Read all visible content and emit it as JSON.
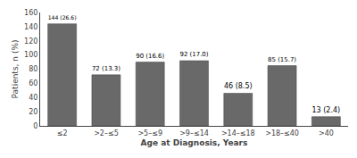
{
  "chart_data": {
    "type": "bar",
    "categories": [
      "≤2",
      ">2–≤5",
      ">5–≤9",
      ">9–≤14",
      ">14–≤18",
      ">18–≤40",
      ">40"
    ],
    "values": [
      144,
      72,
      90,
      92,
      46,
      85,
      13
    ],
    "value_labels": [
      "144 (26.6)",
      "72 (13.3)",
      "90 (16.6)",
      "92 (17.0)",
      "46 (8.5)",
      "85 (15.7)",
      "13 (2.4)"
    ],
    "color": "#696969",
    "xlabel": "Age at Diagnosis, Years",
    "ylabel": "Patients, n (%)",
    "ylim": [
      0,
      160
    ],
    "yticks": [
      0,
      20,
      40,
      60,
      80,
      100,
      120,
      140,
      160
    ],
    "grid": false
  }
}
